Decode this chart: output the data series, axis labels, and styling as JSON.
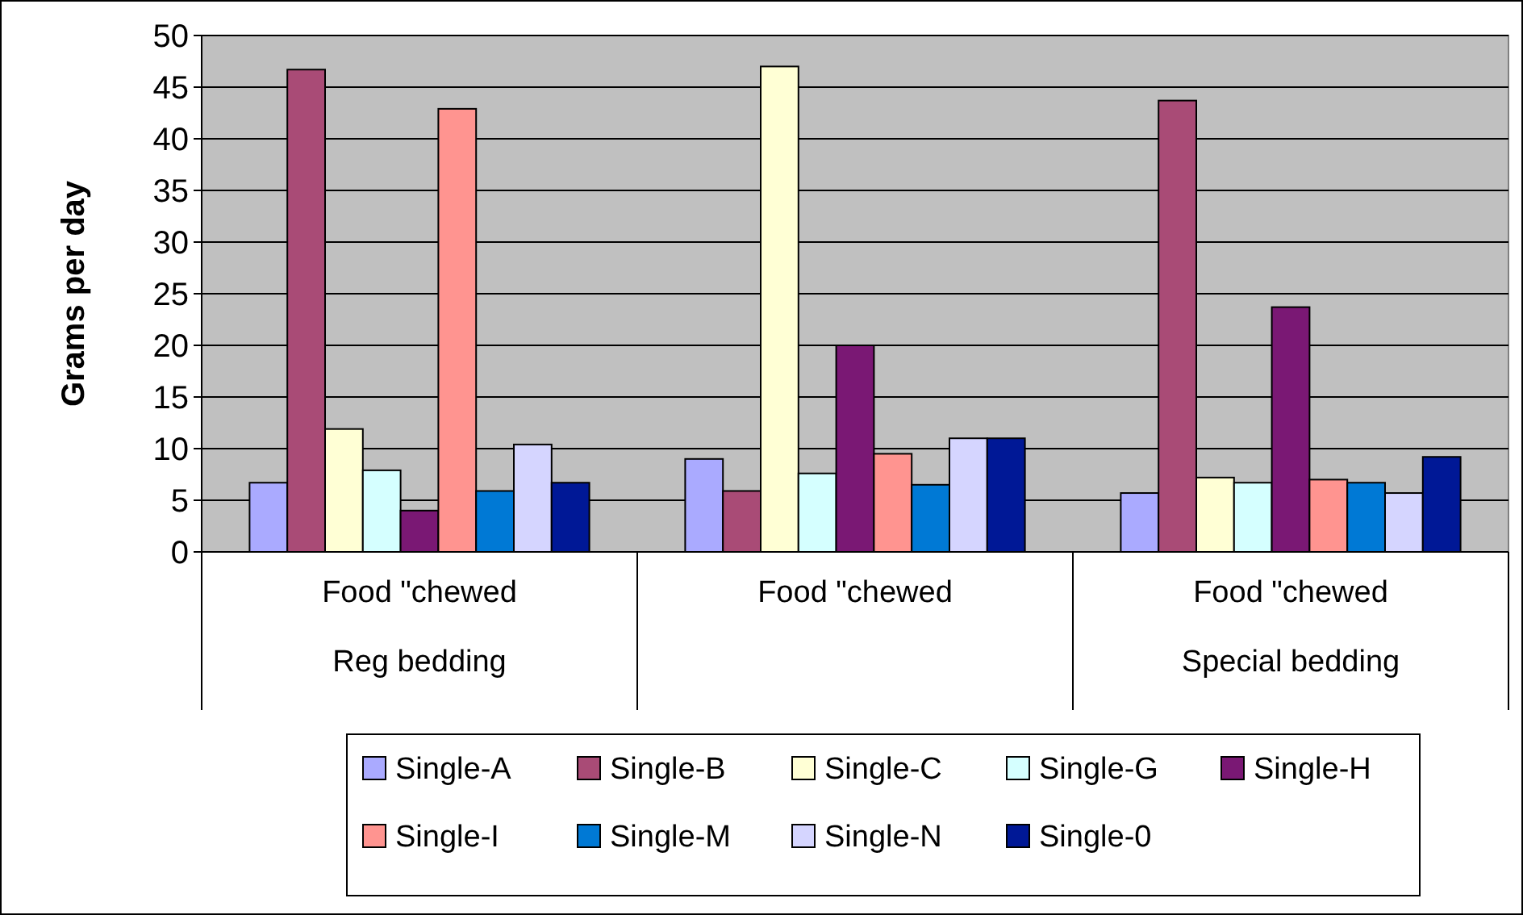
{
  "chart_data": {
    "type": "bar",
    "ylabel": "Grams per day",
    "categories": [
      "Food \"chewed\nReg bedding",
      "Food \"chewed",
      "Food \"chewed\nSpecial bedding"
    ],
    "ylim": [
      0,
      50
    ],
    "yticks": [
      0,
      5,
      10,
      15,
      20,
      25,
      30,
      35,
      40,
      45,
      50
    ],
    "grid": "y",
    "legend": "bottom",
    "series": [
      {
        "name": "Single-A",
        "color": "#aaaaff",
        "values": [
          6.7,
          9.0,
          5.7
        ]
      },
      {
        "name": "Single-B",
        "color": "#a94b76",
        "values": [
          46.7,
          5.9,
          43.7
        ]
      },
      {
        "name": "Single-C",
        "color": "#ffffd5",
        "values": [
          11.9,
          47.0,
          7.2
        ]
      },
      {
        "name": "Single-G",
        "color": "#d5ffff",
        "values": [
          7.9,
          7.6,
          6.7
        ]
      },
      {
        "name": "Single-H",
        "color": "#7a1874",
        "values": [
          4.0,
          20.0,
          23.7
        ]
      },
      {
        "name": "Single-I",
        "color": "#ff9490",
        "values": [
          42.9,
          9.5,
          7.0
        ]
      },
      {
        "name": "Single-M",
        "color": "#0079d5",
        "values": [
          5.9,
          6.5,
          6.7
        ]
      },
      {
        "name": "Single-N",
        "color": "#d5d5ff",
        "values": [
          10.4,
          11.0,
          5.7
        ]
      },
      {
        "name": "Single-0",
        "color": "#001896",
        "values": [
          6.7,
          11.0,
          9.2
        ]
      }
    ]
  }
}
